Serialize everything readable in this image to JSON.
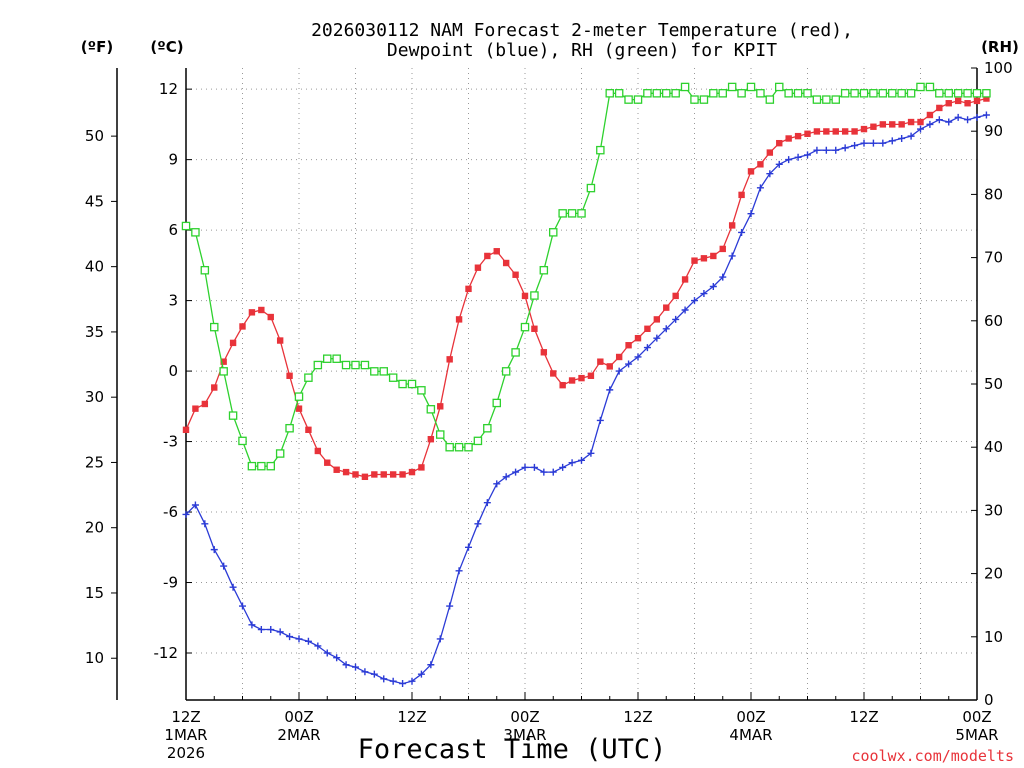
{
  "chart_data": {
    "type": "line",
    "title_lines": [
      "2026030112 NAM Forecast 2-meter Temperature (red),",
      "Dewpoint (blue), RH (green) for KPIT"
    ],
    "xlabel": "Forecast Time (UTC)",
    "credit": "coolwx.com/modelts",
    "units": {
      "fahrenheit": "(ºF)",
      "celsius": "(ºC)",
      "rh": "(RH)"
    },
    "x_range_hours": [
      0,
      84
    ],
    "celsius_range": [
      -14,
      12.9
    ],
    "rh_range": [
      0,
      100
    ],
    "celsius_ticks": [
      "12",
      "9",
      "6",
      "3",
      "0",
      "-3",
      "-6",
      "-9",
      "-12"
    ],
    "celsius_tick_values": [
      12,
      9,
      6,
      3,
      0,
      -3,
      -6,
      -9,
      -12
    ],
    "fahrenheit_ticks": [
      "50",
      "45",
      "40",
      "35",
      "30",
      "25",
      "20",
      "15",
      "10"
    ],
    "fahrenheit_tick_values": [
      50,
      45,
      40,
      35,
      30,
      25,
      20,
      15,
      10
    ],
    "rh_ticks": [
      "100",
      "90",
      "80",
      "70",
      "60",
      "50",
      "40",
      "30",
      "20",
      "10",
      "0"
    ],
    "rh_tick_values": [
      100,
      90,
      80,
      70,
      60,
      50,
      40,
      30,
      20,
      10,
      0
    ],
    "x_ticks": [
      {
        "hour": 0,
        "lines": [
          "12Z",
          "1MAR",
          "2026"
        ]
      },
      {
        "hour": 12,
        "lines": [
          "00Z",
          "2MAR"
        ]
      },
      {
        "hour": 24,
        "lines": [
          "12Z"
        ]
      },
      {
        "hour": 36,
        "lines": [
          "00Z",
          "3MAR"
        ]
      },
      {
        "hour": 48,
        "lines": [
          "12Z"
        ]
      },
      {
        "hour": 60,
        "lines": [
          "00Z",
          "4MAR"
        ]
      },
      {
        "hour": 72,
        "lines": [
          "12Z"
        ]
      },
      {
        "hour": 84,
        "lines": [
          "00Z",
          "5MAR"
        ]
      }
    ],
    "series": [
      {
        "name": "Temperature",
        "unit": "C",
        "color": "#e8333a",
        "marker": "filled-square",
        "values": [
          -2.5,
          -1.6,
          -1.4,
          -0.7,
          0.4,
          1.2,
          1.9,
          2.5,
          2.6,
          2.3,
          1.3,
          -0.2,
          -1.6,
          -2.5,
          -3.4,
          -3.9,
          -4.2,
          -4.3,
          -4.4,
          -4.5,
          -4.4,
          -4.4,
          -4.4,
          -4.4,
          -4.3,
          -4.1,
          -2.9,
          -1.5,
          0.5,
          2.2,
          3.5,
          4.4,
          4.9,
          5.1,
          4.6,
          4.1,
          3.2,
          1.8,
          0.8,
          -0.1,
          -0.6,
          -0.4,
          -0.3,
          -0.2,
          0.4,
          0.2,
          0.6,
          1.1,
          1.4,
          1.8,
          2.2,
          2.7,
          3.2,
          3.9,
          4.7,
          4.8,
          4.9,
          5.2,
          6.2,
          7.5,
          8.5,
          8.8,
          9.3,
          9.7,
          9.9,
          10.0,
          10.1,
          10.2,
          10.2,
          10.2,
          10.2,
          10.2,
          10.3,
          10.4,
          10.5,
          10.5,
          10.5,
          10.6,
          10.6,
          10.9,
          11.2,
          11.4,
          11.5,
          11.4,
          11.5,
          11.6
        ]
      },
      {
        "name": "Dewpoint",
        "unit": "C",
        "color": "#2b3bd6",
        "marker": "plus",
        "values": [
          -6.1,
          -5.7,
          -6.5,
          -7.6,
          -8.3,
          -9.2,
          -10.0,
          -10.8,
          -11.0,
          -11.0,
          -11.1,
          -11.3,
          -11.4,
          -11.5,
          -11.7,
          -12.0,
          -12.2,
          -12.5,
          -12.6,
          -12.8,
          -12.9,
          -13.1,
          -13.2,
          -13.3,
          -13.2,
          -12.9,
          -12.5,
          -11.4,
          -10.0,
          -8.5,
          -7.5,
          -6.5,
          -5.6,
          -4.8,
          -4.5,
          -4.3,
          -4.1,
          -4.1,
          -4.3,
          -4.3,
          -4.1,
          -3.9,
          -3.8,
          -3.5,
          -2.1,
          -0.8,
          0.0,
          0.3,
          0.6,
          1.0,
          1.4,
          1.8,
          2.2,
          2.6,
          3.0,
          3.3,
          3.6,
          4.0,
          4.9,
          5.9,
          6.7,
          7.8,
          8.4,
          8.8,
          9.0,
          9.1,
          9.2,
          9.4,
          9.4,
          9.4,
          9.5,
          9.6,
          9.7,
          9.7,
          9.7,
          9.8,
          9.9,
          10.0,
          10.3,
          10.5,
          10.7,
          10.6,
          10.8,
          10.7,
          10.8,
          10.9
        ]
      },
      {
        "name": "RH",
        "unit": "%",
        "color": "#2ed12e",
        "marker": "open-square",
        "values": [
          75,
          74,
          68,
          59,
          52,
          45,
          41,
          37,
          37,
          37,
          39,
          43,
          48,
          51,
          53,
          54,
          54,
          53,
          53,
          53,
          52,
          52,
          51,
          50,
          50,
          49,
          46,
          42,
          40,
          40,
          40,
          41,
          43,
          47,
          52,
          55,
          59,
          64,
          68,
          74,
          77,
          77,
          77,
          81,
          87,
          96,
          96,
          95,
          95,
          96,
          96,
          96,
          96,
          97,
          95,
          95,
          96,
          96,
          97,
          96,
          97,
          96,
          95,
          97,
          96,
          96,
          96,
          95,
          95,
          95,
          96,
          96,
          96,
          96,
          96,
          96,
          96,
          96,
          97,
          97,
          96,
          96,
          96,
          96,
          96,
          96
        ]
      }
    ]
  }
}
